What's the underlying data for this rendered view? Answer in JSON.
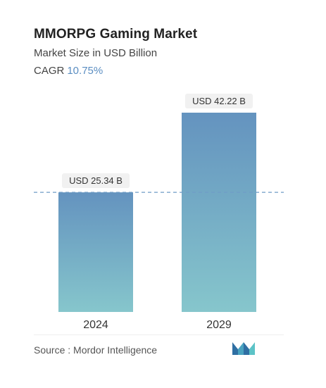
{
  "header": {
    "title": "MMORPG Gaming Market",
    "subtitle": "Market Size in USD Billion",
    "cagr_label": "CAGR",
    "cagr_value": "10.75%"
  },
  "chart_data": {
    "type": "bar",
    "title": "MMORPG Gaming Market",
    "subtitle": "Market Size in USD Billion",
    "categories": [
      "2024",
      "2029"
    ],
    "values": [
      25.34,
      42.22
    ],
    "data_labels": [
      "USD 25.34 B",
      "USD 42.22 B"
    ],
    "ylim": [
      0,
      42.22
    ],
    "reference_line": {
      "value": 25.34,
      "style": "dashed"
    },
    "grid": false,
    "legend": "none",
    "colors": {
      "bar_top": "#6493bf",
      "bar_bottom": "#86c6cc",
      "reference_line": "#6f9cc6",
      "label_bg": "#f1f1f1",
      "cagr": "#5b8ec2"
    }
  },
  "footer": {
    "source": "Source :  Mordor Intelligence",
    "logo_icon": "mordor-intelligence-logo-icon"
  }
}
